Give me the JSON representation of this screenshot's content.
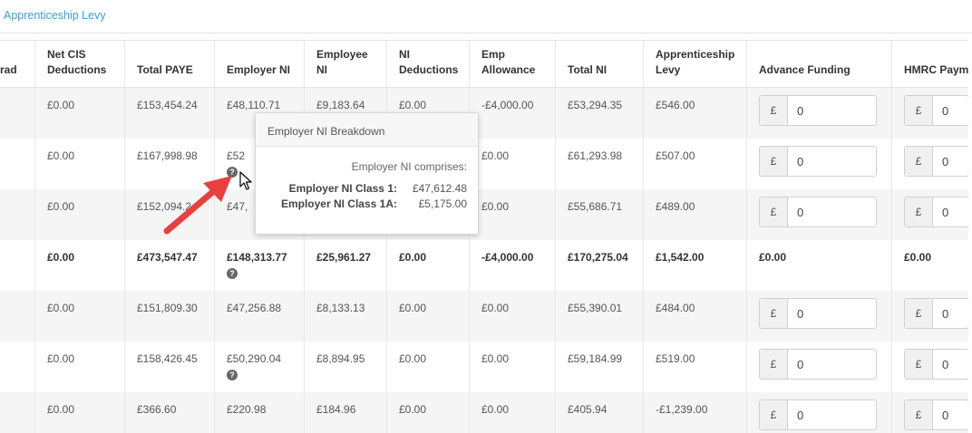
{
  "breadcrumb": {
    "label": "Apprenticeship Levy"
  },
  "columns": [
    "rad",
    "Net CIS Deductions",
    "Total PAYE",
    "Employer NI",
    "Employee NI",
    "NI Deductions",
    "Emp Allowance",
    "Total NI",
    "Apprenticeship Levy",
    "Advance Funding",
    "HMRC Payme"
  ],
  "currency_symbol": "£",
  "rows": [
    {
      "net_cis": "£0.00",
      "total_paye": "£153,454.24",
      "employer_ni": "£48,110.71",
      "employee_ni": "£9,183.64",
      "ni_deductions": "£0.00",
      "emp_allowance": "-£4,000.00",
      "total_ni": "£53,294.35",
      "levy": "£546.00",
      "advance": "0",
      "hmrc": "0"
    },
    {
      "net_cis": "£0.00",
      "total_paye": "£167,998.98",
      "employer_ni": "£52",
      "employee_ni": "",
      "ni_deductions": "",
      "emp_allowance": "£0.00",
      "total_ni": "£61,293.98",
      "levy": "£507.00",
      "advance": "0",
      "hmrc": "0"
    },
    {
      "net_cis": "£0.00",
      "total_paye": "£152,094.2",
      "employer_ni": "£47,",
      "employee_ni": "",
      "ni_deductions": "",
      "emp_allowance": "£0.00",
      "total_ni": "£55,686.71",
      "levy": "£489.00",
      "advance": "0",
      "hmrc": "0"
    },
    {
      "net_cis": "£0.00",
      "total_paye": "£473,547.47",
      "employer_ni": "£148,313.77",
      "employee_ni": "£25,961.27",
      "ni_deductions": "£0.00",
      "emp_allowance": "-£4,000.00",
      "total_ni": "£170,275.04",
      "levy": "£1,542.00",
      "advance": "£0.00",
      "hmrc": "£0.00"
    },
    {
      "net_cis": "£0.00",
      "total_paye": "£151,809.30",
      "employer_ni": "£47,256.88",
      "employee_ni": "£8,133.13",
      "ni_deductions": "£0.00",
      "emp_allowance": "£0.00",
      "total_ni": "£55,390.01",
      "levy": "£484.00",
      "advance": "0",
      "hmrc": "0"
    },
    {
      "net_cis": "£0.00",
      "total_paye": "£158,426.45",
      "employer_ni": "£50,290.04",
      "employee_ni": "£8,894.95",
      "ni_deductions": "£0.00",
      "emp_allowance": "£0.00",
      "total_ni": "£59,184.99",
      "levy": "£519.00",
      "advance": "0",
      "hmrc": "0"
    },
    {
      "net_cis": "£0.00",
      "total_paye": "£366.60",
      "employer_ni": "£220.98",
      "employee_ni": "£184.96",
      "ni_deductions": "£0.00",
      "emp_allowance": "£0.00",
      "total_ni": "£405.94",
      "levy": "-£1,239.00",
      "advance": "0",
      "hmrc": "0"
    }
  ],
  "tooltip": {
    "title": "Employer NI Breakdown",
    "subtitle": "Employer NI comprises:",
    "class1_label": "Employer NI Class 1:",
    "class1_value": "£47,612.48",
    "class1a_label": "Employer NI Class 1A:",
    "class1a_value": "£5,175.00"
  },
  "info_icon_glyph": "?",
  "colors": {
    "link": "#3a9fd8",
    "arrow": "#e8403f",
    "row_shade": "#f5f5f5"
  }
}
